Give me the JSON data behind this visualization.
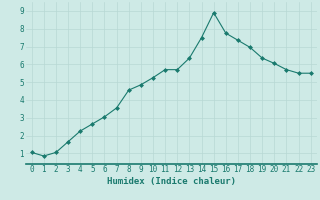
{
  "x": [
    0,
    1,
    2,
    3,
    4,
    5,
    6,
    7,
    8,
    9,
    10,
    11,
    12,
    13,
    14,
    15,
    16,
    17,
    18,
    19,
    20,
    21,
    22,
    23
  ],
  "y": [
    1.05,
    0.85,
    1.05,
    1.65,
    2.25,
    2.65,
    3.05,
    3.55,
    4.55,
    4.85,
    5.25,
    5.7,
    5.7,
    6.35,
    7.5,
    8.9,
    7.75,
    7.35,
    6.95,
    6.35,
    6.05,
    5.7,
    5.5,
    5.5
  ],
  "line_color": "#1a7a6e",
  "marker": "D",
  "marker_size": 2.0,
  "bg_color": "#ceeae6",
  "grid_color": "#b8d8d4",
  "xlabel": "Humidex (Indice chaleur)",
  "xlim": [
    -0.5,
    23.5
  ],
  "ylim": [
    0.4,
    9.5
  ],
  "yticks": [
    1,
    2,
    3,
    4,
    5,
    6,
    7,
    8,
    9
  ],
  "xticks": [
    0,
    1,
    2,
    3,
    4,
    5,
    6,
    7,
    8,
    9,
    10,
    11,
    12,
    13,
    14,
    15,
    16,
    17,
    18,
    19,
    20,
    21,
    22,
    23
  ],
  "tick_label_size": 5.5,
  "xlabel_fontsize": 6.5,
  "line_style": "-",
  "line_width": 0.8
}
